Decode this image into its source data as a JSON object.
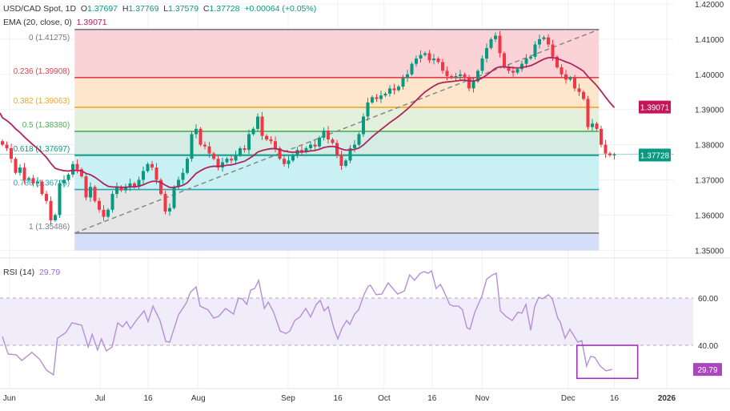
{
  "header": {
    "symbol": "USD/CAD Spot, 1D",
    "o_label": "O",
    "o_value": "1.37697",
    "h_label": "H",
    "h_value": "1.37769",
    "l_label": "L",
    "l_value": "1.37579",
    "c_label": "C",
    "c_value": "1.37728",
    "change": "+0.00064 (+0.05%)",
    "ema_label": "EMA (20, close, 0)",
    "ema_value": "1.39071"
  },
  "rsi_header": {
    "label": "RSI (14)",
    "value": "29.79"
  },
  "colors": {
    "up": "#089981",
    "down": "#f23645",
    "ema": "#b0245e",
    "rsi": "#b48fd6",
    "rsi_band": "#f1ecfa",
    "ema_badge": "#c2185b",
    "price_badge": "#089981",
    "rsi_badge": "#ab47bc"
  },
  "chart_data": [
    {
      "type": "candlestick",
      "y_axis": {
        "ticks": [
          "1.42000",
          "1.41000",
          "1.40000",
          "1.39000",
          "1.38000",
          "1.37000",
          "1.36000",
          "1.35000"
        ],
        "range": [
          1.35,
          1.42
        ]
      },
      "x_ticks": [
        {
          "label": "Jun",
          "index": 1.6
        },
        {
          "label": "Jul",
          "index": 22.2
        },
        {
          "label": "16",
          "index": 33.1
        },
        {
          "label": "Aug",
          "index": 44.5
        },
        {
          "label": "Sep",
          "index": 64.9
        },
        {
          "label": "16",
          "index": 76.2
        },
        {
          "label": "Oct",
          "index": 86.7
        },
        {
          "label": "16",
          "index": 97.6
        },
        {
          "label": "Nov",
          "index": 109
        },
        {
          "label": "Dec",
          "index": 128.5
        },
        {
          "label": "16",
          "index": 139
        },
        {
          "label": "2026",
          "index": 150.9
        }
      ],
      "closes": [
        1.38,
        1.379,
        1.376,
        1.372,
        1.3735,
        1.37,
        1.3705,
        1.369,
        1.3695,
        1.366,
        1.364,
        1.3585,
        1.36,
        1.369,
        1.37,
        1.3715,
        1.3745,
        1.373,
        1.371,
        1.365,
        1.368,
        1.364,
        1.3615,
        1.3595,
        1.3615,
        1.366,
        1.368,
        1.367,
        1.368,
        1.369,
        1.368,
        1.37,
        1.3725,
        1.3745,
        1.3735,
        1.37,
        1.366,
        1.361,
        1.362,
        1.368,
        1.37,
        1.372,
        1.376,
        1.383,
        1.3845,
        1.38,
        1.3795,
        1.3775,
        1.376,
        1.3735,
        1.375,
        1.376,
        1.3755,
        1.377,
        1.379,
        1.3785,
        1.383,
        1.3845,
        1.388,
        1.3825,
        1.3815,
        1.381,
        1.379,
        1.376,
        1.3745,
        1.3755,
        1.377,
        1.3785,
        1.378,
        1.379,
        1.38,
        1.3795,
        1.382,
        1.384,
        1.3815,
        1.3805,
        1.377,
        1.374,
        1.3755,
        1.379,
        1.38,
        1.383,
        1.388,
        1.392,
        1.3935,
        1.393,
        1.394,
        1.3945,
        1.396,
        1.3955,
        1.3965,
        1.399,
        1.4,
        1.403,
        1.4045,
        1.4055,
        1.406,
        1.404,
        1.4045,
        1.4035,
        1.401,
        1.3995,
        1.399,
        1.3995,
        1.4,
        1.399,
        1.396,
        1.398,
        1.401,
        1.4045,
        1.4075,
        1.41,
        1.411,
        1.406,
        1.402,
        1.401,
        1.4005,
        1.4015,
        1.403,
        1.4045,
        1.405,
        1.4085,
        1.41,
        1.4105,
        1.4085,
        1.405,
        1.402,
        1.4,
        1.3985,
        1.399,
        1.396,
        1.395,
        1.393,
        1.385,
        1.386,
        1.3845,
        1.38,
        1.3775,
        1.377,
        1.37728
      ],
      "last_candle": {
        "open": 1.37697,
        "high": 1.37769,
        "low": 1.37579,
        "close": 1.37728
      },
      "ema": {
        "period": 20,
        "last": 1.39071
      },
      "last_price": {
        "value": "1.37728"
      },
      "ema_badge": {
        "value": "1.39071"
      },
      "fibonacci": {
        "start_index": 16.4,
        "end_index": 135.5,
        "levels": [
          {
            "label": "0 (1.41275)",
            "ratio": 0,
            "price": 1.41275,
            "line": "#787b86",
            "fill": "#fbd3d6"
          },
          {
            "label": "0.236 (1.39908)",
            "ratio": 0.236,
            "price": 1.39908,
            "line": "#e04050",
            "fill": "#fde6cc"
          },
          {
            "label": "0.382 (1.39063)",
            "ratio": 0.382,
            "price": 1.39063,
            "line": "#f5a623",
            "fill": "#e3f1dc"
          },
          {
            "label": "0.5 (1.38380)",
            "ratio": 0.5,
            "price": 1.3838,
            "line": "#4caf50",
            "fill": "#d4ece3"
          },
          {
            "label": "0.618 (1.37697)",
            "ratio": 0.618,
            "price": 1.37697,
            "line": "#089981",
            "fill": "#c9f0f3"
          },
          {
            "label": "0.786 (1.36725)",
            "ratio": 0.786,
            "price": 1.36725,
            "line": "#26a6b5",
            "fill": "#e6e6e6"
          },
          {
            "label": "1 (1.35486)",
            "ratio": 1,
            "price": 1.35486,
            "line": "#787b86",
            "fill": "#d5def8"
          }
        ],
        "trendline": {
          "from": [
            16.4,
            1.35486
          ],
          "to": [
            135.5,
            1.41275
          ]
        }
      }
    },
    {
      "type": "line",
      "name": "RSI (14)",
      "y_axis": {
        "ticks": [
          "60.00",
          "40.00"
        ],
        "band": [
          40,
          60
        ]
      },
      "last_value": "29.79",
      "points": [
        [
          0,
          43.7
        ],
        [
          1.3,
          36.3
        ],
        [
          3.1,
          36
        ],
        [
          4.4,
          33.6
        ],
        [
          6.7,
          37
        ],
        [
          8.5,
          34
        ],
        [
          10,
          29.5
        ],
        [
          11.6,
          27.5
        ],
        [
          12.5,
          43
        ],
        [
          14.4,
          45.4
        ],
        [
          15.8,
          49.5
        ],
        [
          18,
          48.5
        ],
        [
          19.5,
          39.3
        ],
        [
          20.4,
          44.7
        ],
        [
          21.6,
          38
        ],
        [
          22.5,
          42.7
        ],
        [
          23.6,
          37.6
        ],
        [
          24.9,
          39.3
        ],
        [
          26.2,
          49.5
        ],
        [
          27.3,
          47.8
        ],
        [
          28.2,
          50
        ],
        [
          29.1,
          47
        ],
        [
          30.4,
          50.5
        ],
        [
          32.2,
          54.6
        ],
        [
          33.1,
          50
        ],
        [
          34.2,
          56.6
        ],
        [
          35.8,
          50.5
        ],
        [
          37.1,
          41.7
        ],
        [
          38,
          41.3
        ],
        [
          40,
          52.9
        ],
        [
          41.8,
          58
        ],
        [
          42.7,
          62.4
        ],
        [
          44,
          64.7
        ],
        [
          44.9,
          56.6
        ],
        [
          46.7,
          55
        ],
        [
          48,
          51.5
        ],
        [
          49.1,
          52.2
        ],
        [
          50.7,
          55.6
        ],
        [
          52.5,
          53.2
        ],
        [
          53.6,
          60
        ],
        [
          54.5,
          59.7
        ],
        [
          55.5,
          57.3
        ],
        [
          56.4,
          63.4
        ],
        [
          57.3,
          64
        ],
        [
          58.2,
          67.5
        ],
        [
          59.5,
          55.6
        ],
        [
          60.4,
          58.3
        ],
        [
          61.6,
          54
        ],
        [
          63.1,
          46
        ],
        [
          64.4,
          45
        ],
        [
          65.3,
          46
        ],
        [
          66.4,
          50.5
        ],
        [
          67.6,
          52
        ],
        [
          68.9,
          55.6
        ],
        [
          70,
          52
        ],
        [
          71.3,
          57.3
        ],
        [
          72.2,
          59
        ],
        [
          73.1,
          54.6
        ],
        [
          74,
          56.3
        ],
        [
          75.3,
          47.1
        ],
        [
          76.2,
          42.7
        ],
        [
          77.1,
          47.1
        ],
        [
          78.2,
          50.5
        ],
        [
          78.9,
          48.8
        ],
        [
          80,
          53.2
        ],
        [
          80.9,
          55
        ],
        [
          82.2,
          61.7
        ],
        [
          83.1,
          65
        ],
        [
          83.6,
          65.4
        ],
        [
          84.9,
          61.4
        ],
        [
          86.2,
          61.7
        ],
        [
          87.6,
          66.4
        ],
        [
          89.8,
          61.7
        ],
        [
          91.3,
          63
        ],
        [
          92.5,
          69.8
        ],
        [
          93.6,
          67.5
        ],
        [
          94.9,
          70.5
        ],
        [
          95.8,
          71.2
        ],
        [
          96.7,
          70.5
        ],
        [
          97.5,
          71.5
        ],
        [
          98.5,
          64
        ],
        [
          99.5,
          65.8
        ],
        [
          100.4,
          62.4
        ],
        [
          101.6,
          57.3
        ],
        [
          102.5,
          56.6
        ],
        [
          103.6,
          56.6
        ],
        [
          104.5,
          55
        ],
        [
          105.5,
          47.5
        ],
        [
          106.2,
          46.8
        ],
        [
          107.3,
          54
        ],
        [
          108.9,
          60.7
        ],
        [
          110,
          68
        ],
        [
          111.3,
          69.8
        ],
        [
          112.2,
          70.5
        ],
        [
          113.1,
          54.6
        ],
        [
          114.4,
          52.2
        ],
        [
          115.8,
          50.5
        ],
        [
          117.1,
          54
        ],
        [
          118,
          53.6
        ],
        [
          118.9,
          57.3
        ],
        [
          120,
          46.4
        ],
        [
          120.9,
          56.3
        ],
        [
          121.8,
          60.3
        ],
        [
          122.7,
          59.7
        ],
        [
          124,
          61.4
        ],
        [
          124.9,
          59.7
        ],
        [
          126.2,
          51.2
        ],
        [
          126.7,
          50
        ],
        [
          127.8,
          43
        ],
        [
          128.9,
          46.8
        ],
        [
          130.7,
          41.3
        ],
        [
          131.6,
          42
        ],
        [
          132.7,
          31.2
        ],
        [
          133.6,
          35.3
        ],
        [
          134.5,
          35
        ],
        [
          135.8,
          31.2
        ],
        [
          137.1,
          29.2
        ],
        [
          138.5,
          29.8
        ]
      ],
      "highlight_box": {
        "from_index": 130.5,
        "to_index": 144.3,
        "range": [
          26,
          40
        ],
        "color": "#a030b8"
      }
    }
  ]
}
